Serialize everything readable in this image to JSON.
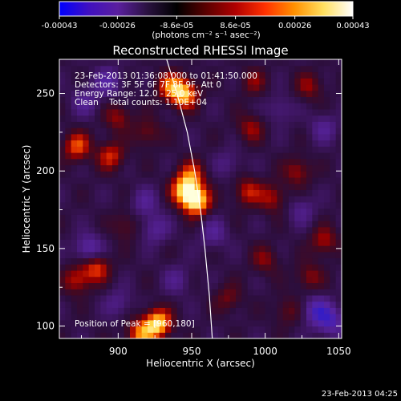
{
  "chart_data": {
    "type": "heatmap",
    "title": "Reconstructed RHESSI Image",
    "xlabel": "Heliocentric X (arcsec)",
    "ylabel": "Heliocentric Y (arcsec)",
    "xlim": [
      860,
      1052
    ],
    "ylim": [
      92,
      272
    ],
    "x_ticks": [
      "900",
      "950",
      "1000",
      "1050"
    ],
    "x_tick_values": [
      900,
      950,
      1000,
      1050
    ],
    "y_ticks": [
      "100",
      "150",
      "200",
      "250"
    ],
    "y_tick_values": [
      100,
      150,
      200,
      250
    ],
    "colorbar": {
      "unit_label": "(photons cm⁻² s⁻¹ asec⁻²)",
      "tick_labels": [
        "-0.00043",
        "-0.00026",
        "-8.6e-05",
        "8.6e-05",
        "0.00026",
        "0.00043"
      ],
      "min": -0.00043,
      "max": 0.00043,
      "colors": [
        "#0000ff",
        "#4010c0",
        "#5a1f9e",
        "#2a1240",
        "#000000",
        "#5a0000",
        "#b00000",
        "#ff3000",
        "#ff9000",
        "#ffe060",
        "#ffffff"
      ]
    },
    "info_lines": [
      "23-Feb-2013 01:36:08.000 to 01:41:50.000",
      "Detectors: 3F 5F 6F 7F 8F 9F, Att 0",
      "Energy Range: 12.0 - 25.0 keV",
      "Clean    Total counts: 1.10E+04"
    ],
    "peak_text": "Position of Peak = [960,180]",
    "peak": [
      960,
      180
    ],
    "limb_x": [
      933,
      940,
      947,
      952,
      956,
      959,
      962,
      964
    ],
    "limb_y": [
      272,
      250,
      225,
      200,
      175,
      150,
      120,
      92
    ],
    "emission_sources": [
      {
        "x": 953,
        "y": 181,
        "value": 0.00043
      },
      {
        "x": 945,
        "y": 188,
        "value": 0.00034
      },
      {
        "x": 950,
        "y": 198,
        "value": 0.00022
      },
      {
        "x": 945,
        "y": 250,
        "value": 0.00036
      },
      {
        "x": 935,
        "y": 255,
        "value": 0.00024
      },
      {
        "x": 927,
        "y": 102,
        "value": 0.0004
      },
      {
        "x": 915,
        "y": 95,
        "value": 0.00028
      },
      {
        "x": 872,
        "y": 216,
        "value": 0.00026
      },
      {
        "x": 895,
        "y": 210,
        "value": 0.00022
      },
      {
        "x": 885,
        "y": 138,
        "value": 0.00025
      },
      {
        "x": 872,
        "y": 130,
        "value": 0.0002
      },
      {
        "x": 988,
        "y": 187,
        "value": 0.0002
      },
      {
        "x": 1005,
        "y": 183,
        "value": 0.00018
      },
      {
        "x": 1022,
        "y": 200,
        "value": 0.00017
      },
      {
        "x": 990,
        "y": 228,
        "value": 0.00016
      },
      {
        "x": 1040,
        "y": 155,
        "value": 0.00018
      },
      {
        "x": 1030,
        "y": 132,
        "value": 0.00015
      },
      {
        "x": 1000,
        "y": 143,
        "value": 0.00014
      },
      {
        "x": 1030,
        "y": 255,
        "value": 0.00015
      },
      {
        "x": 992,
        "y": 258,
        "value": 0.00013
      },
      {
        "x": 900,
        "y": 235,
        "value": 0.00016
      },
      {
        "x": 920,
        "y": 225,
        "value": 0.00014
      },
      {
        "x": 905,
        "y": 165,
        "value": 0.00012
      },
      {
        "x": 975,
        "y": 118,
        "value": 0.00013
      },
      {
        "x": 1015,
        "y": 110,
        "value": 0.00012
      },
      {
        "x": 925,
        "y": 163,
        "value": -0.00016
      },
      {
        "x": 918,
        "y": 180,
        "value": -0.00014
      },
      {
        "x": 893,
        "y": 258,
        "value": -0.00018
      },
      {
        "x": 878,
        "y": 245,
        "value": -0.00014
      },
      {
        "x": 880,
        "y": 150,
        "value": -0.00022
      },
      {
        "x": 1035,
        "y": 110,
        "value": -0.00024
      },
      {
        "x": 1045,
        "y": 103,
        "value": -0.00022
      },
      {
        "x": 1040,
        "y": 228,
        "value": -0.00014
      },
      {
        "x": 965,
        "y": 160,
        "value": -0.00015
      },
      {
        "x": 940,
        "y": 130,
        "value": -0.00012
      },
      {
        "x": 1010,
        "y": 240,
        "value": -0.00011
      },
      {
        "x": 975,
        "y": 205,
        "value": -0.0001
      },
      {
        "x": 1025,
        "y": 175,
        "value": -0.00012
      },
      {
        "x": 900,
        "y": 115,
        "value": -0.00012
      }
    ]
  },
  "footer_timestamp": "23-Feb-2013 04:25"
}
